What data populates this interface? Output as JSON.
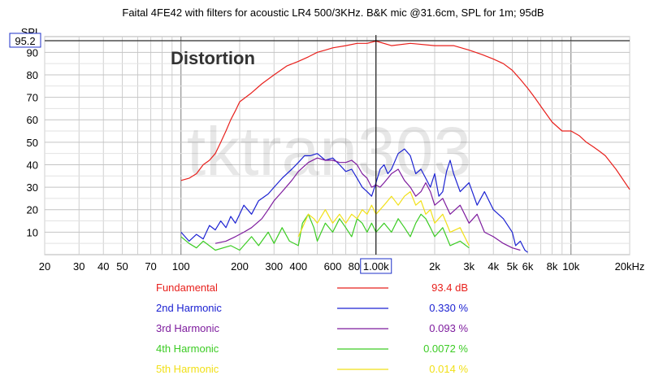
{
  "chart_data": {
    "type": "line",
    "title": "Faital 4FE42 with filters for acoustic LR4 500/3KHz. B&K mic @31.6cm, SPL for 1m; 95dB",
    "heading": "Distortion",
    "watermark": "tktran303",
    "ylabel": "SPL",
    "cursor": {
      "x": 1000,
      "y": 95.2,
      "x_label": "1.00k",
      "y_label": "95.2"
    },
    "xscale": "log",
    "xlim": [
      20,
      20000
    ],
    "ylim": [
      0,
      97
    ],
    "grid": true,
    "xticks": [
      {
        "v": 20,
        "label": "20"
      },
      {
        "v": 30,
        "label": "30"
      },
      {
        "v": 40,
        "label": "40"
      },
      {
        "v": 50,
        "label": "50"
      },
      {
        "v": 70,
        "label": "70"
      },
      {
        "v": 100,
        "label": "100"
      },
      {
        "v": 200,
        "label": "200"
      },
      {
        "v": 300,
        "label": "300"
      },
      {
        "v": 400,
        "label": "400"
      },
      {
        "v": 600,
        "label": "600"
      },
      {
        "v": 800,
        "label": "800"
      },
      {
        "v": 2000,
        "label": "2k"
      },
      {
        "v": 3000,
        "label": "3k"
      },
      {
        "v": 4000,
        "label": "4k"
      },
      {
        "v": 5000,
        "label": "5k"
      },
      {
        "v": 6000,
        "label": "6k"
      },
      {
        "v": 8000,
        "label": "8k"
      },
      {
        "v": 10000,
        "label": "10k"
      },
      {
        "v": 20000,
        "label": "20kHz"
      }
    ],
    "yticks": [
      {
        "v": 10,
        "label": "10"
      },
      {
        "v": 20,
        "label": "20"
      },
      {
        "v": 30,
        "label": "30"
      },
      {
        "v": 40,
        "label": "40"
      },
      {
        "v": 50,
        "label": "50"
      },
      {
        "v": 60,
        "label": "60"
      },
      {
        "v": 70,
        "label": "70"
      },
      {
        "v": 80,
        "label": "80"
      },
      {
        "v": 90,
        "label": "90"
      }
    ],
    "series": [
      {
        "name": "Fundamental",
        "value": "93.4 dB",
        "color": "#e8201c",
        "points": [
          [
            100,
            33
          ],
          [
            110,
            34
          ],
          [
            120,
            36
          ],
          [
            130,
            40
          ],
          [
            140,
            42
          ],
          [
            150,
            45
          ],
          [
            160,
            50
          ],
          [
            170,
            55
          ],
          [
            180,
            60
          ],
          [
            190,
            64
          ],
          [
            200,
            68
          ],
          [
            230,
            72
          ],
          [
            260,
            76
          ],
          [
            300,
            80
          ],
          [
            350,
            84
          ],
          [
            400,
            86
          ],
          [
            450,
            88
          ],
          [
            500,
            90
          ],
          [
            550,
            91
          ],
          [
            600,
            92
          ],
          [
            700,
            93
          ],
          [
            800,
            94
          ],
          [
            900,
            94
          ],
          [
            1000,
            95
          ],
          [
            1200,
            93
          ],
          [
            1500,
            94
          ],
          [
            2000,
            93
          ],
          [
            2500,
            93
          ],
          [
            3000,
            91
          ],
          [
            3500,
            89
          ],
          [
            4000,
            87
          ],
          [
            4500,
            85
          ],
          [
            5000,
            82
          ],
          [
            5500,
            78
          ],
          [
            6000,
            74
          ],
          [
            6500,
            70
          ],
          [
            7000,
            66
          ],
          [
            8000,
            59
          ],
          [
            9000,
            55
          ],
          [
            10000,
            55
          ],
          [
            11000,
            53
          ],
          [
            12000,
            50
          ],
          [
            13000,
            48
          ],
          [
            14000,
            46
          ],
          [
            15000,
            44
          ],
          [
            17000,
            38
          ],
          [
            20000,
            29
          ]
        ]
      },
      {
        "name": "2nd Harmonic",
        "value": "0.330 %",
        "color": "#1c22d2",
        "points": [
          [
            100,
            10
          ],
          [
            110,
            6
          ],
          [
            120,
            9
          ],
          [
            130,
            7
          ],
          [
            140,
            13
          ],
          [
            150,
            11
          ],
          [
            160,
            15
          ],
          [
            170,
            12
          ],
          [
            180,
            17
          ],
          [
            190,
            14
          ],
          [
            200,
            18
          ],
          [
            210,
            22
          ],
          [
            230,
            18
          ],
          [
            250,
            24
          ],
          [
            280,
            27
          ],
          [
            300,
            30
          ],
          [
            330,
            34
          ],
          [
            370,
            38
          ],
          [
            400,
            41
          ],
          [
            430,
            44
          ],
          [
            460,
            44
          ],
          [
            500,
            45
          ],
          [
            550,
            42
          ],
          [
            600,
            43
          ],
          [
            650,
            40
          ],
          [
            700,
            37
          ],
          [
            750,
            38
          ],
          [
            800,
            34
          ],
          [
            850,
            30
          ],
          [
            900,
            28
          ],
          [
            950,
            26
          ],
          [
            1000,
            32
          ],
          [
            1050,
            38
          ],
          [
            1100,
            40
          ],
          [
            1150,
            36
          ],
          [
            1200,
            38
          ],
          [
            1300,
            45
          ],
          [
            1400,
            47
          ],
          [
            1500,
            44
          ],
          [
            1600,
            36
          ],
          [
            1700,
            38
          ],
          [
            1800,
            34
          ],
          [
            1900,
            30
          ],
          [
            2000,
            36
          ],
          [
            2100,
            26
          ],
          [
            2200,
            28
          ],
          [
            2300,
            37
          ],
          [
            2400,
            42
          ],
          [
            2500,
            36
          ],
          [
            2700,
            28
          ],
          [
            3000,
            32
          ],
          [
            3300,
            22
          ],
          [
            3600,
            28
          ],
          [
            4000,
            20
          ],
          [
            4500,
            16
          ],
          [
            5000,
            10
          ],
          [
            5200,
            4
          ],
          [
            5500,
            6
          ],
          [
            5800,
            2
          ],
          [
            6000,
            1
          ]
        ]
      },
      {
        "name": "3rd Harmonic",
        "value": "0.093 %",
        "color": "#7e1c9e",
        "points": [
          [
            150,
            5
          ],
          [
            170,
            6
          ],
          [
            190,
            8
          ],
          [
            210,
            10
          ],
          [
            230,
            12
          ],
          [
            260,
            16
          ],
          [
            280,
            20
          ],
          [
            300,
            24
          ],
          [
            330,
            28
          ],
          [
            370,
            33
          ],
          [
            400,
            37
          ],
          [
            450,
            41
          ],
          [
            500,
            43
          ],
          [
            550,
            42
          ],
          [
            600,
            42
          ],
          [
            650,
            41
          ],
          [
            700,
            41
          ],
          [
            750,
            42
          ],
          [
            800,
            40
          ],
          [
            850,
            36
          ],
          [
            900,
            34
          ],
          [
            950,
            30
          ],
          [
            1000,
            31
          ],
          [
            1050,
            30
          ],
          [
            1100,
            32
          ],
          [
            1150,
            34
          ],
          [
            1200,
            36
          ],
          [
            1300,
            38
          ],
          [
            1400,
            33
          ],
          [
            1500,
            30
          ],
          [
            1600,
            26
          ],
          [
            1700,
            28
          ],
          [
            1800,
            32
          ],
          [
            1900,
            28
          ],
          [
            2000,
            22
          ],
          [
            2200,
            25
          ],
          [
            2400,
            18
          ],
          [
            2700,
            22
          ],
          [
            3000,
            14
          ],
          [
            3300,
            18
          ],
          [
            3600,
            10
          ],
          [
            4000,
            8
          ],
          [
            4500,
            5
          ],
          [
            5000,
            3
          ],
          [
            5500,
            2
          ]
        ]
      },
      {
        "name": "4th Harmonic",
        "value": "0.0072 %",
        "color": "#3ccc24",
        "points": [
          [
            100,
            8
          ],
          [
            110,
            5
          ],
          [
            120,
            3
          ],
          [
            130,
            6
          ],
          [
            150,
            2
          ],
          [
            180,
            4
          ],
          [
            200,
            2
          ],
          [
            230,
            8
          ],
          [
            250,
            4
          ],
          [
            280,
            10
          ],
          [
            300,
            5
          ],
          [
            330,
            12
          ],
          [
            360,
            6
          ],
          [
            400,
            4
          ],
          [
            420,
            14
          ],
          [
            450,
            18
          ],
          [
            480,
            12
          ],
          [
            500,
            6
          ],
          [
            550,
            14
          ],
          [
            600,
            10
          ],
          [
            650,
            16
          ],
          [
            700,
            12
          ],
          [
            750,
            8
          ],
          [
            800,
            16
          ],
          [
            850,
            14
          ],
          [
            900,
            10
          ],
          [
            950,
            14
          ],
          [
            1000,
            10
          ],
          [
            1100,
            14
          ],
          [
            1200,
            10
          ],
          [
            1300,
            16
          ],
          [
            1400,
            12
          ],
          [
            1500,
            8
          ],
          [
            1600,
            14
          ],
          [
            1700,
            18
          ],
          [
            1800,
            16
          ],
          [
            1900,
            12
          ],
          [
            2000,
            8
          ],
          [
            2200,
            12
          ],
          [
            2400,
            4
          ],
          [
            2700,
            6
          ],
          [
            3000,
            3
          ]
        ]
      },
      {
        "name": "5th Harmonic",
        "value": "0.014 %",
        "color": "#f1e018",
        "points": [
          [
            400,
            8
          ],
          [
            420,
            12
          ],
          [
            450,
            18
          ],
          [
            480,
            16
          ],
          [
            500,
            14
          ],
          [
            550,
            20
          ],
          [
            600,
            14
          ],
          [
            650,
            18
          ],
          [
            700,
            14
          ],
          [
            750,
            18
          ],
          [
            800,
            16
          ],
          [
            850,
            20
          ],
          [
            900,
            18
          ],
          [
            950,
            22
          ],
          [
            1000,
            18
          ],
          [
            1100,
            22
          ],
          [
            1200,
            26
          ],
          [
            1300,
            22
          ],
          [
            1400,
            26
          ],
          [
            1500,
            28
          ],
          [
            1600,
            22
          ],
          [
            1700,
            24
          ],
          [
            1800,
            18
          ],
          [
            1900,
            20
          ],
          [
            2000,
            14
          ],
          [
            2200,
            18
          ],
          [
            2400,
            10
          ],
          [
            2700,
            12
          ],
          [
            3000,
            4
          ]
        ]
      }
    ]
  }
}
